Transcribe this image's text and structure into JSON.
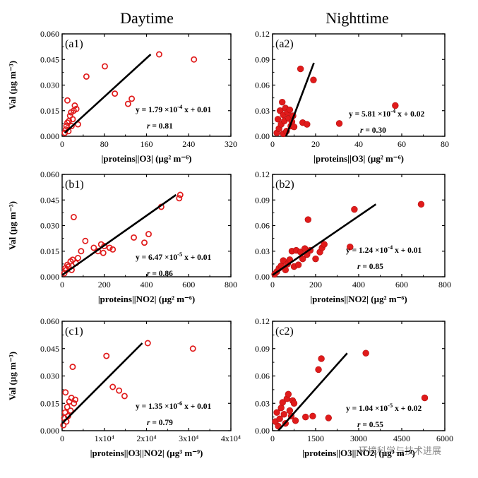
{
  "column_titles": {
    "left": "Daytime",
    "right": "Nighttime"
  },
  "watermark": "环境科学与技术进展",
  "chart_data": [
    {
      "id": "a1",
      "type": "scatter",
      "panel_label": "(a1)",
      "xlabel": "|proteins||O3| (µg² m⁻⁶)",
      "ylabel": "Val (µg m⁻³)",
      "xlim": [
        0,
        320
      ],
      "ylim": [
        0,
        0.06
      ],
      "xticks": [
        "0",
        "80",
        "160",
        "240",
        "320"
      ],
      "yticks": [
        "0.000",
        "0.015",
        "0.030",
        "0.045",
        "0.060"
      ],
      "marker": "open",
      "points": [
        [
          5,
          0.002
        ],
        [
          7,
          0.004
        ],
        [
          8,
          0.006
        ],
        [
          10,
          0.008
        ],
        [
          10,
          0.021
        ],
        [
          12,
          0.003
        ],
        [
          13,
          0.009
        ],
        [
          15,
          0.012
        ],
        [
          17,
          0.014
        ],
        [
          18,
          0.006
        ],
        [
          20,
          0.01
        ],
        [
          22,
          0.015
        ],
        [
          24,
          0.018
        ],
        [
          27,
          0.016
        ],
        [
          30,
          0.007
        ],
        [
          46,
          0.035
        ],
        [
          81,
          0.041
        ],
        [
          100,
          0.025
        ],
        [
          125,
          0.019
        ],
        [
          132,
          0.022
        ],
        [
          184,
          0.048
        ],
        [
          250,
          0.045
        ]
      ],
      "fit": {
        "x": [
          5,
          168
        ],
        "y": [
          0.002,
          0.048
        ]
      },
      "equation": {
        "prefix": "y = 1.79 ×10",
        "exp": "-4",
        "suffix": " x + 0.01"
      },
      "r": {
        "label": "r",
        "value": " = 0.81"
      }
    },
    {
      "id": "a2",
      "type": "scatter",
      "panel_label": "(a2)",
      "xlabel": "|proteins||O3| (µg² m⁻⁶)",
      "ylabel": "",
      "xlim": [
        0,
        80
      ],
      "ylim": [
        0,
        0.12
      ],
      "xticks": [
        "0",
        "20",
        "40",
        "60",
        "80"
      ],
      "yticks": [
        "0.00",
        "0.03",
        "0.06",
        "0.09",
        "0.12"
      ],
      "marker": "filled",
      "points": [
        [
          2,
          0.004
        ],
        [
          2.5,
          0.02
        ],
        [
          3,
          0.009
        ],
        [
          3.5,
          0.03
        ],
        [
          4,
          0.014
        ],
        [
          4.5,
          0.04
        ],
        [
          5,
          0.025
        ],
        [
          5,
          0.003
        ],
        [
          5.5,
          0.018
        ],
        [
          6,
          0.033
        ],
        [
          6.5,
          0.006
        ],
        [
          7,
          0.028
        ],
        [
          7.5,
          0.021
        ],
        [
          8,
          0.031
        ],
        [
          8.5,
          0.012
        ],
        [
          9,
          0.017
        ],
        [
          9.5,
          0.024
        ],
        [
          10,
          0.011
        ],
        [
          13,
          0.079
        ],
        [
          14,
          0.016
        ],
        [
          16,
          0.014
        ],
        [
          19,
          0.066
        ],
        [
          31,
          0.015
        ],
        [
          57,
          0.036
        ]
      ],
      "fit": {
        "x": [
          6.3,
          19.2
        ],
        "y": [
          0.0,
          0.086
        ]
      },
      "equation": {
        "prefix": "y = 5.81 ×10",
        "exp": "-4",
        "suffix": " x + 0.02"
      },
      "r": {
        "label": "r",
        "value": " = 0.30"
      }
    },
    {
      "id": "b1",
      "type": "scatter",
      "panel_label": "(b1)",
      "xlabel": "|proteins||NO2| (µg² m⁻⁶)",
      "ylabel": "Val (µg m⁻³)",
      "xlim": [
        0,
        800
      ],
      "ylim": [
        0,
        0.06
      ],
      "xticks": [
        "0",
        "200",
        "400",
        "600",
        "800"
      ],
      "yticks": [
        "0.000",
        "0.015",
        "0.030",
        "0.045",
        "0.060"
      ],
      "marker": "open",
      "points": [
        [
          10,
          0.002
        ],
        [
          15,
          0.005
        ],
        [
          20,
          0.004
        ],
        [
          25,
          0.007
        ],
        [
          30,
          0.006
        ],
        [
          40,
          0.009
        ],
        [
          45,
          0.004
        ],
        [
          50,
          0.01
        ],
        [
          55,
          0.035
        ],
        [
          65,
          0.008
        ],
        [
          75,
          0.011
        ],
        [
          90,
          0.015
        ],
        [
          110,
          0.021
        ],
        [
          150,
          0.017
        ],
        [
          170,
          0.015
        ],
        [
          185,
          0.019
        ],
        [
          195,
          0.014
        ],
        [
          200,
          0.018
        ],
        [
          225,
          0.017
        ],
        [
          240,
          0.016
        ],
        [
          340,
          0.023
        ],
        [
          390,
          0.02
        ],
        [
          410,
          0.025
        ],
        [
          470,
          0.041
        ],
        [
          555,
          0.046
        ],
        [
          560,
          0.048
        ]
      ],
      "fit": {
        "x": [
          0,
          540
        ],
        "y": [
          0.001,
          0.048
        ]
      },
      "equation": {
        "prefix": "y = 6.47 ×10",
        "exp": "-5",
        "suffix": " x + 0.01"
      },
      "r": {
        "label": "r",
        "value": " = 0.86"
      }
    },
    {
      "id": "b2",
      "type": "scatter",
      "panel_label": "(b2)",
      "xlabel": "|proteins||NO2| (µg² m⁻⁶)",
      "ylabel": "",
      "xlim": [
        0,
        800
      ],
      "ylim": [
        0,
        0.12
      ],
      "xticks": [
        "0",
        "200",
        "400",
        "600",
        "800"
      ],
      "yticks": [
        "0.00",
        "0.03",
        "0.06",
        "0.09",
        "0.12"
      ],
      "marker": "filled",
      "points": [
        [
          10,
          0.003
        ],
        [
          20,
          0.006
        ],
        [
          30,
          0.01
        ],
        [
          40,
          0.013
        ],
        [
          50,
          0.019
        ],
        [
          60,
          0.008
        ],
        [
          70,
          0.015
        ],
        [
          80,
          0.02
        ],
        [
          90,
          0.03
        ],
        [
          100,
          0.012
        ],
        [
          110,
          0.031
        ],
        [
          120,
          0.014
        ],
        [
          130,
          0.029
        ],
        [
          140,
          0.021
        ],
        [
          150,
          0.033
        ],
        [
          160,
          0.026
        ],
        [
          165,
          0.067
        ],
        [
          175,
          0.031
        ],
        [
          200,
          0.021
        ],
        [
          220,
          0.029
        ],
        [
          230,
          0.034
        ],
        [
          240,
          0.038
        ],
        [
          360,
          0.035
        ],
        [
          380,
          0.079
        ],
        [
          690,
          0.085
        ]
      ],
      "fit": {
        "x": [
          0,
          480
        ],
        "y": [
          0.002,
          0.085
        ]
      },
      "equation": {
        "prefix": "y = 1.24 ×10",
        "exp": "-4",
        "suffix": " x + 0.01"
      },
      "r": {
        "label": "r",
        "value": " = 0.85"
      }
    },
    {
      "id": "c1",
      "type": "scatter",
      "panel_label": "(c1)",
      "xlabel": "|proteins||O3||NO2| (µg³ m⁻⁹)",
      "ylabel": "Val (µg m⁻³)",
      "xlim": [
        0,
        40000
      ],
      "ylim": [
        0,
        0.06
      ],
      "xticks": [
        "0",
        "1x10⁴",
        "2x10⁴",
        "3x10⁴",
        "4x10⁴"
      ],
      "yticks": [
        "0.000",
        "0.015",
        "0.030",
        "0.045",
        "0.060"
      ],
      "marker": "open",
      "points": [
        [
          300,
          0.003
        ],
        [
          500,
          0.007
        ],
        [
          700,
          0.01
        ],
        [
          800,
          0.021
        ],
        [
          1000,
          0.005
        ],
        [
          1200,
          0.013
        ],
        [
          1400,
          0.008
        ],
        [
          1700,
          0.016
        ],
        [
          2000,
          0.011
        ],
        [
          2200,
          0.018
        ],
        [
          2500,
          0.035
        ],
        [
          2800,
          0.015
        ],
        [
          3100,
          0.017
        ],
        [
          10500,
          0.041
        ],
        [
          12000,
          0.024
        ],
        [
          13500,
          0.022
        ],
        [
          14800,
          0.019
        ],
        [
          20300,
          0.048
        ],
        [
          31000,
          0.045
        ]
      ],
      "fit": {
        "x": [
          0,
          19000
        ],
        "y": [
          0.004,
          0.048
        ]
      },
      "equation": {
        "prefix": "y = 1.35 ×10",
        "exp": "-6",
        "suffix": " x + 0.01"
      },
      "r": {
        "label": "r",
        "value": " = 0.79"
      }
    },
    {
      "id": "c2",
      "type": "scatter",
      "panel_label": "(c2)",
      "xlabel": "|proteins||O3||NO2| (µg³ m⁻⁹)",
      "ylabel": "",
      "xlim": [
        0,
        6000
      ],
      "ylim": [
        0,
        0.12
      ],
      "xticks": [
        "0",
        "1500",
        "3000",
        "4500",
        "6000"
      ],
      "yticks": [
        "0.00",
        "0.03",
        "0.06",
        "0.09",
        "0.12"
      ],
      "marker": "filled",
      "points": [
        [
          100,
          0.01
        ],
        [
          150,
          0.02
        ],
        [
          200,
          0.005
        ],
        [
          250,
          0.013
        ],
        [
          300,
          0.025
        ],
        [
          350,
          0.031
        ],
        [
          400,
          0.018
        ],
        [
          450,
          0.008
        ],
        [
          500,
          0.035
        ],
        [
          550,
          0.04
        ],
        [
          600,
          0.022
        ],
        [
          650,
          0.016
        ],
        [
          700,
          0.033
        ],
        [
          750,
          0.03
        ],
        [
          800,
          0.011
        ],
        [
          1150,
          0.015
        ],
        [
          1400,
          0.016
        ],
        [
          1600,
          0.067
        ],
        [
          1700,
          0.079
        ],
        [
          1950,
          0.014
        ],
        [
          3250,
          0.085
        ],
        [
          5300,
          0.036
        ]
      ],
      "fit": {
        "x": [
          200,
          2600
        ],
        "y": [
          0.0,
          0.085
        ]
      },
      "equation": {
        "prefix": "y = 1.04 ×10",
        "exp": "-5",
        "suffix": " x + 0.02"
      },
      "r": {
        "label": "r",
        "value": " = 0.55"
      }
    }
  ]
}
